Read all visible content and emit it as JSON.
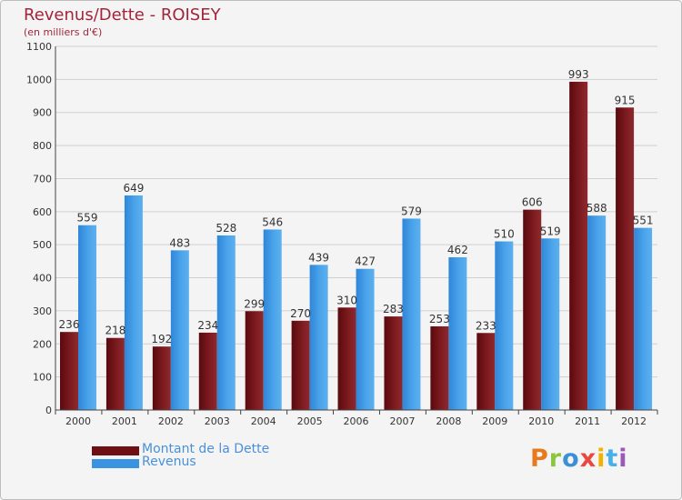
{
  "title": "Revenus/Dette - ROISEY",
  "subtitle": "(en milliers d'€)",
  "logo_text": "Proxiti",
  "colors": {
    "debt_bar": "#6e0f14",
    "revenue_bar": "#3a93e0",
    "title": "#a3243b",
    "legend_text": "#4a90d9",
    "grid": "#d0d0d0",
    "logo_letters": [
      "#e87a1e",
      "#8cc63e",
      "#3d8fd6",
      "#e7483f",
      "#f0b400",
      "#47b0e8",
      "#9b59b6"
    ]
  },
  "chart_data": {
    "type": "bar",
    "title": "Revenus/Dette - ROISEY",
    "ylabel": "(en milliers d'€)",
    "xlabel": "",
    "ylim": [
      0,
      1100
    ],
    "yticks": [
      0,
      100,
      200,
      300,
      400,
      500,
      600,
      700,
      800,
      900,
      1000,
      1100
    ],
    "grid": true,
    "legend_position": "bottom-left",
    "categories": [
      "2000",
      "2001",
      "2002",
      "2003",
      "2004",
      "2005",
      "2006",
      "2007",
      "2008",
      "2009",
      "2010",
      "2011",
      "2012"
    ],
    "series": [
      {
        "name": "Montant de la Dette",
        "values": [
          236,
          218,
          192,
          234,
          299,
          270,
          310,
          283,
          253,
          233,
          606,
          993,
          915
        ]
      },
      {
        "name": "Revenus",
        "values": [
          559,
          649,
          483,
          528,
          546,
          439,
          427,
          579,
          462,
          510,
          519,
          588,
          551
        ]
      }
    ]
  }
}
